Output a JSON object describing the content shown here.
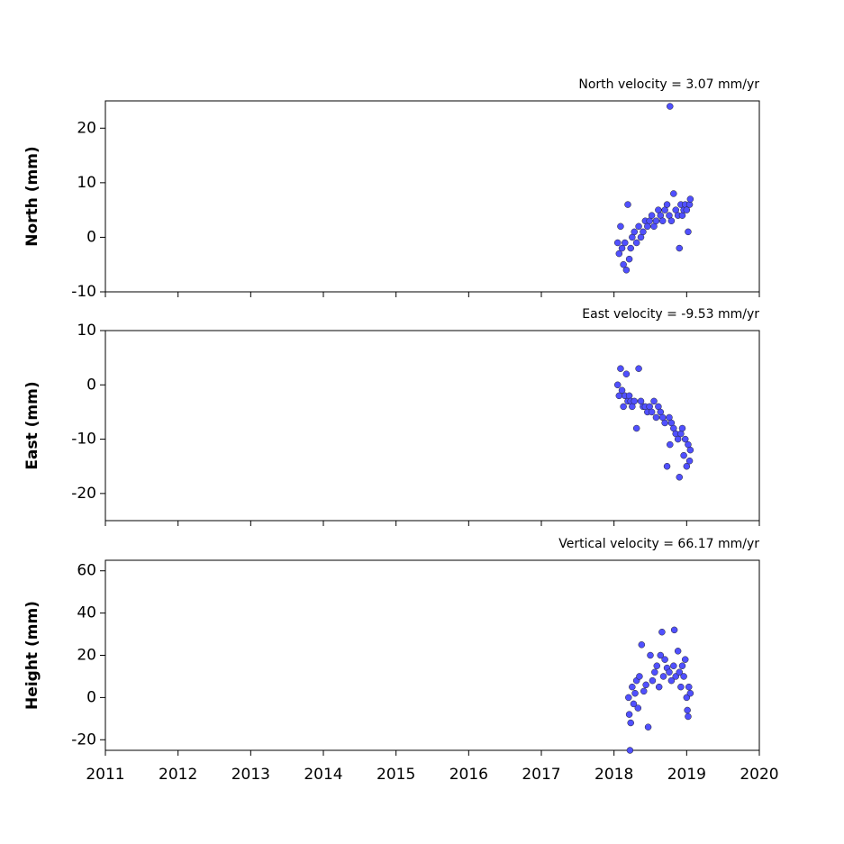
{
  "chart_data": [
    {
      "type": "scatter",
      "title": "North velocity = 3.07 mm/yr",
      "y_label": "North (mm)",
      "color": "#5050ff",
      "x": [
        2018.05,
        2018.07,
        2018.09,
        2018.11,
        2018.13,
        2018.15,
        2018.17,
        2018.19,
        2018.21,
        2018.23,
        2018.25,
        2018.28,
        2018.31,
        2018.34,
        2018.37,
        2018.4,
        2018.43,
        2018.46,
        2018.49,
        2018.52,
        2018.55,
        2018.58,
        2018.61,
        2018.64,
        2018.67,
        2018.7,
        2018.73,
        2018.76,
        2018.77,
        2018.79,
        2018.82,
        2018.85,
        2018.88,
        2018.9,
        2018.92,
        2018.94,
        2018.96,
        2018.98,
        2019.0,
        2019.02,
        2019.04,
        2019.05
      ],
      "values": [
        -1,
        -3,
        2,
        -2,
        -5,
        -1,
        -6,
        6,
        -4,
        -2,
        0,
        1,
        -1,
        2,
        0,
        1,
        3,
        2,
        3,
        4,
        2,
        3,
        5,
        4,
        3,
        5,
        6,
        4,
        24,
        3,
        8,
        5,
        4,
        -2,
        6,
        4,
        5,
        6,
        5,
        1,
        6,
        7
      ],
      "xlim": [
        2011,
        2020
      ],
      "ylim": [
        -10,
        25
      ],
      "yticks": [
        -10,
        0,
        10,
        20
      ]
    },
    {
      "type": "scatter",
      "title": "East velocity = -9.53 mm/yr",
      "y_label": "East (mm)",
      "color": "#5050ff",
      "x": [
        2018.05,
        2018.07,
        2018.09,
        2018.11,
        2018.13,
        2018.15,
        2018.17,
        2018.19,
        2018.21,
        2018.23,
        2018.25,
        2018.28,
        2018.31,
        2018.34,
        2018.37,
        2018.4,
        2018.43,
        2018.46,
        2018.49,
        2018.52,
        2018.55,
        2018.58,
        2018.61,
        2018.64,
        2018.67,
        2018.7,
        2018.73,
        2018.76,
        2018.77,
        2018.79,
        2018.82,
        2018.85,
        2018.88,
        2018.9,
        2018.92,
        2018.94,
        2018.96,
        2018.98,
        2019.0,
        2019.02,
        2019.04,
        2019.05
      ],
      "values": [
        0,
        -2,
        3,
        -1,
        -4,
        -2,
        2,
        -3,
        -2,
        -3,
        -4,
        -3,
        -8,
        3,
        -3,
        -4,
        -4,
        -5,
        -4,
        -5,
        -3,
        -6,
        -4,
        -5,
        -6,
        -7,
        -15,
        -6,
        -11,
        -7,
        -8,
        -9,
        -10,
        -17,
        -9,
        -8,
        -13,
        -10,
        -15,
        -11,
        -14,
        -12
      ],
      "xlim": [
        2011,
        2020
      ],
      "ylim": [
        -25,
        10
      ],
      "yticks": [
        -20,
        -10,
        0,
        10
      ]
    },
    {
      "type": "scatter",
      "title": "Vertical velocity = 66.17 mm/yr",
      "y_label": "Height (mm)",
      "color": "#5050ff",
      "x": [
        2018.2,
        2018.21,
        2018.22,
        2018.23,
        2018.25,
        2018.27,
        2018.29,
        2018.31,
        2018.33,
        2018.35,
        2018.38,
        2018.41,
        2018.44,
        2018.47,
        2018.5,
        2018.53,
        2018.56,
        2018.59,
        2018.62,
        2018.64,
        2018.66,
        2018.68,
        2018.7,
        2018.73,
        2018.76,
        2018.79,
        2018.82,
        2018.83,
        2018.85,
        2018.88,
        2018.9,
        2018.92,
        2018.94,
        2018.96,
        2018.98,
        2019.0,
        2019.01,
        2019.02,
        2019.03,
        2019.05
      ],
      "values": [
        0,
        -8,
        -25,
        -12,
        5,
        -3,
        2,
        8,
        -5,
        10,
        25,
        3,
        6,
        -14,
        20,
        8,
        12,
        15,
        5,
        20,
        31,
        10,
        18,
        14,
        12,
        8,
        15,
        32,
        10,
        22,
        12,
        5,
        15,
        10,
        18,
        0,
        -6,
        -9,
        5,
        2
      ],
      "xlim": [
        2011,
        2020
      ],
      "ylim": [
        -25,
        65
      ],
      "yticks": [
        -20,
        0,
        20,
        40,
        60
      ],
      "xticks": [
        2011,
        2012,
        2013,
        2014,
        2015,
        2016,
        2017,
        2018,
        2019,
        2020
      ]
    }
  ]
}
